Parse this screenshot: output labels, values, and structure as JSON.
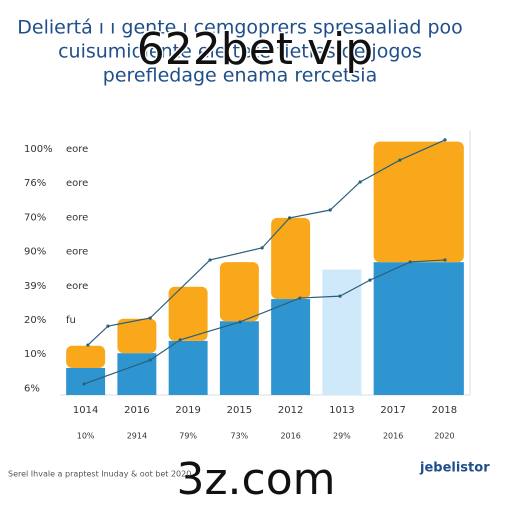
{
  "chart_data": {
    "type": "bar",
    "title_lines": [
      "Deliertá ı ı gente ı cemgoprers spresaaliad poo",
      "cuisumidlente ele tete tieties de jogos",
      "perefledage enama rercetsia"
    ],
    "watermark": "622bet vip",
    "watermark_bottom": "3z.com",
    "footer": "Serel Ihvale a praptest Inuday & oot bet 2020",
    "footer_right": "jebelistor",
    "y_labels": [
      "100%",
      "76%",
      "70%",
      "90%",
      "39%",
      "20%",
      "10%",
      "6%"
    ],
    "y_sublabels": [
      "eore",
      "eore",
      "eore",
      "eore",
      "eore",
      "fu"
    ],
    "categories": [
      "1014",
      "2016",
      "2019",
      "2015",
      "2012",
      "1013",
      "2017",
      "2018"
    ],
    "sublabels": [
      "10%",
      "2914",
      "79%",
      "73%",
      "2016",
      "29%",
      "2016",
      "2020"
    ],
    "ylim": [
      0,
      105
    ],
    "series": [
      {
        "color": "#2f95d0",
        "colors": [
          "#2f95d0",
          "#2f95d0",
          "#2f95d0",
          "#2f95d0",
          "#2f95d0",
          "#cfe9fb",
          "#2f95d0",
          null
        ],
        "values": [
          11,
          17,
          22,
          30,
          39,
          51,
          54,
          null
        ]
      },
      {
        "color": "#f9a81b",
        "values": [
          9,
          14,
          22,
          24,
          33,
          0,
          49,
          null
        ]
      }
    ],
    "line_xlim": [
      0,
      100
    ],
    "lines": [
      {
        "color": "#2a5f7a",
        "x": [
          6.8,
          11.7,
          22,
          36.6,
          49.3,
          56,
          65.9,
          73.2,
          82.9,
          93.9
        ],
        "values": [
          20.3,
          28,
          31.3,
          54.9,
          59.8,
          72,
          75.2,
          86.6,
          95.5,
          103.7
        ]
      },
      {
        "color": "#2a5f7a",
        "x": [
          5.9,
          22,
          29.3,
          43.9,
          58.5,
          68.3,
          75.6,
          85.4,
          93.9
        ],
        "values": [
          4.5,
          14.2,
          22.4,
          29.7,
          39.4,
          40.2,
          46.7,
          54.1,
          54.9
        ]
      }
    ]
  }
}
